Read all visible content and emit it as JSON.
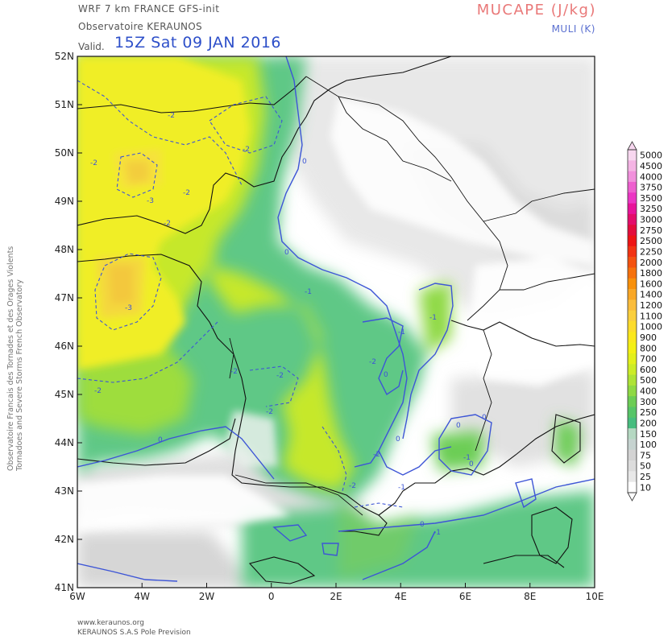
{
  "header": {
    "model": "WRF 7 km FRANCE  GFS-init",
    "organization": "Observatoire KERAUNOS",
    "valid_label": "Valid.",
    "valid_time": "15Z Sat 09 JAN 2016",
    "variable_shaded": "MUCAPE (J/kg)",
    "variable_contours": "MULI (K)"
  },
  "side_credit": {
    "line1": "Observatoire Francais des Tornades et des Orages Violents",
    "line2": "Tornadoes and Severe Storms French Observatory"
  },
  "footer": {
    "website": "www.keraunos.org",
    "company": "KERAUNOS S.A.S Pole Prevision"
  },
  "axes": {
    "lat_labels": [
      "52N",
      "51N",
      "50N",
      "49N",
      "48N",
      "47N",
      "46N",
      "45N",
      "44N",
      "43N",
      "42N",
      "41N"
    ],
    "lon_labels": [
      "6W",
      "4W",
      "2W",
      "0",
      "2E",
      "4E",
      "6E",
      "8E",
      "10E"
    ]
  },
  "colorbar": {
    "labels": [
      "5000",
      "4500",
      "4000",
      "3750",
      "3500",
      "3250",
      "3000",
      "2750",
      "2500",
      "2250",
      "2000",
      "1800",
      "1600",
      "1400",
      "1200",
      "1100",
      "1000",
      "900",
      "800",
      "700",
      "600",
      "500",
      "400",
      "300",
      "250",
      "200",
      "150",
      "100",
      "75",
      "50",
      "25",
      "10"
    ],
    "colors": [
      "#f7d7ef",
      "#f4b4e4",
      "#f190dc",
      "#ee5fcf",
      "#ec36c4",
      "#e8149a",
      "#e40d6b",
      "#e40d3c",
      "#ee1414",
      "#f23312",
      "#f4520f",
      "#f6710c",
      "#f8900a",
      "#f9a726",
      "#fbbd3c",
      "#fbcf3d",
      "#fddc2c",
      "#fbe81b",
      "#f4f014",
      "#e3f01b",
      "#ccec27",
      "#aee336",
      "#8fd944",
      "#6ccd55",
      "#56c568",
      "#47bd7f",
      "#b5d8c2",
      "#c6d3d0",
      "#d3d3d3",
      "#dcdcdc",
      "#e8e8e8",
      "#ffffff"
    ]
  },
  "contour_labels": [
    "-2",
    "-2",
    "-3",
    "-2",
    "-3",
    "-2",
    "-2",
    "-2",
    "-2",
    "-1",
    "-2",
    "-2",
    "0",
    "0",
    "0",
    "0",
    "-1",
    "-1",
    "-1",
    "0",
    "0",
    "0",
    "-1",
    "-2",
    "-2",
    "0",
    "-2",
    "-1",
    "0"
  ]
}
